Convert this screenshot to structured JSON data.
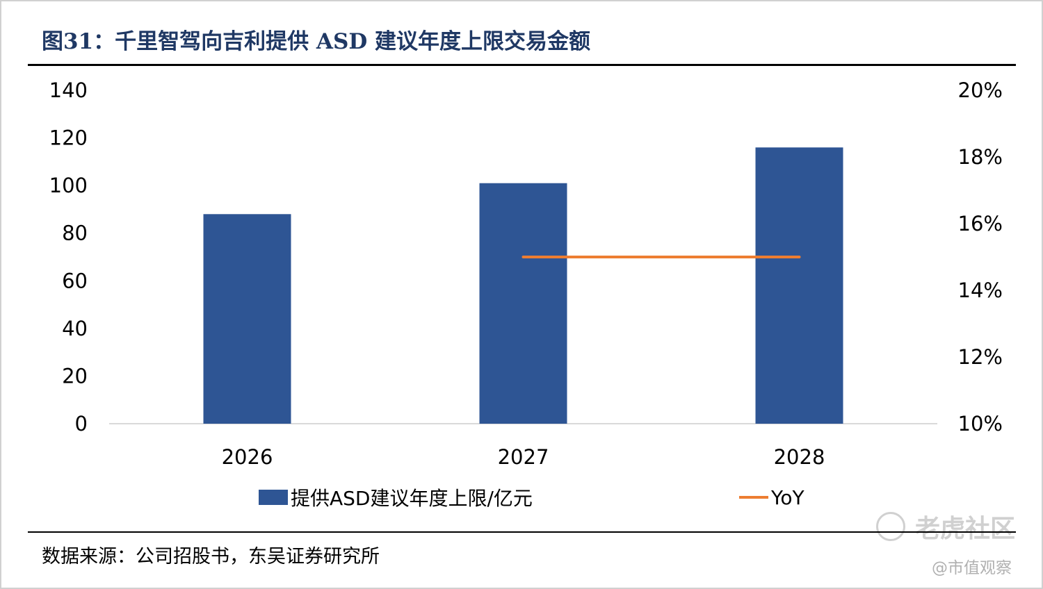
{
  "title": "图31：千里智驾向吉利提供 ASD 建议年度上限交易金额",
  "source": "数据来源：公司招股书，东吴证券研究所",
  "watermark": {
    "brand": "老虎社区",
    "handle": "@市值观察"
  },
  "colors": {
    "bar": "#2e5594",
    "line": "#ed7d31",
    "title": "#1f3864"
  },
  "chart_data": {
    "type": "bar+line",
    "categories": [
      "2026",
      "2027",
      "2028"
    ],
    "series": [
      {
        "name": "提供ASD建议年度上限/亿元",
        "type": "bar",
        "axis": "left",
        "values": [
          88,
          101,
          116
        ]
      },
      {
        "name": "YoY",
        "type": "line",
        "axis": "right",
        "values": [
          null,
          0.15,
          0.15
        ]
      }
    ],
    "left_axis": {
      "ylim": [
        0,
        140
      ],
      "ticks": [
        0,
        20,
        40,
        60,
        80,
        100,
        120,
        140
      ],
      "tick_labels": [
        "0",
        "20",
        "40",
        "60",
        "80",
        "100",
        "120",
        "140"
      ]
    },
    "right_axis": {
      "ylim": [
        0.1,
        0.2
      ],
      "ticks": [
        0.1,
        0.12,
        0.14,
        0.16,
        0.18,
        0.2
      ],
      "tick_labels": [
        "10%",
        "12%",
        "14%",
        "16%",
        "18%",
        "20%"
      ]
    },
    "legend_position": "bottom",
    "grid": false
  }
}
